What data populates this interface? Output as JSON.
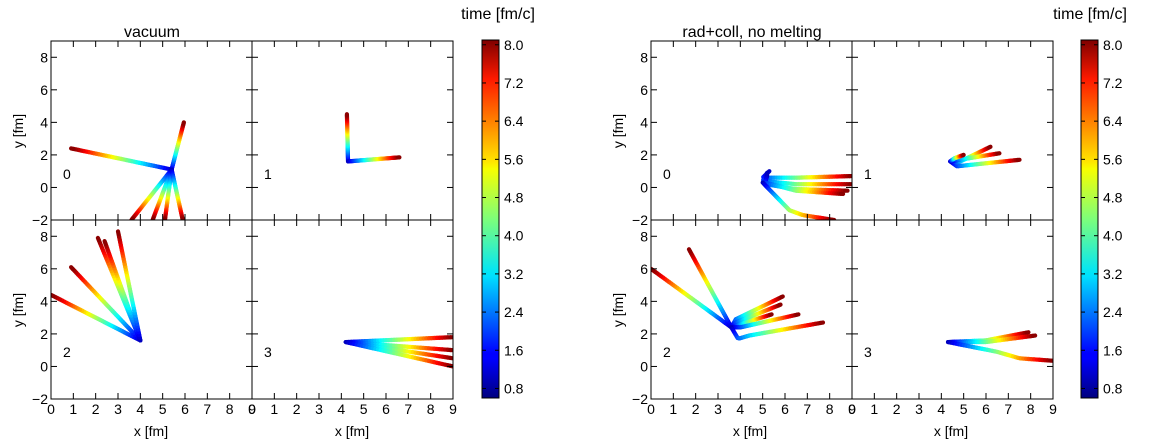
{
  "chart_data": [
    {
      "type": "line",
      "title": "vacuum",
      "xlabel": "x [fm]",
      "ylabel": "y [fm]",
      "xlim": [
        0,
        9
      ],
      "ylim": [
        -2,
        9
      ],
      "xticks": [
        "0",
        "1",
        "2",
        "3",
        "4",
        "5",
        "6",
        "7",
        "8",
        "9"
      ],
      "yticks": [
        "−2",
        "0",
        "2",
        "4",
        "6",
        "8"
      ],
      "colorbar": {
        "label": "time [fm/c]",
        "range": [
          0.6,
          8.1
        ],
        "ticks": [
          "0.8",
          "1.6",
          "2.4",
          "3.2",
          "4.0",
          "4.8",
          "5.6",
          "6.4",
          "7.2",
          "8.0"
        ]
      },
      "panels": [
        {
          "label": "0",
          "tracks": [
            {
              "x": [
                5.4,
                0.9
              ],
              "y": [
                1.1,
                2.4
              ]
            },
            {
              "x": [
                5.4,
                5.95
              ],
              "y": [
                1.1,
                4.0
              ]
            },
            {
              "x": [
                5.4,
                3.6
              ],
              "y": [
                1.1,
                -2.0
              ]
            },
            {
              "x": [
                5.4,
                4.55
              ],
              "y": [
                1.1,
                -2.0
              ]
            },
            {
              "x": [
                5.4,
                5.1
              ],
              "y": [
                1.1,
                -2.0
              ]
            },
            {
              "x": [
                5.4,
                5.9
              ],
              "y": [
                1.1,
                -2.0
              ]
            }
          ]
        },
        {
          "label": "1",
          "tracks": [
            {
              "x": [
                4.3,
                4.25
              ],
              "y": [
                1.6,
                4.5
              ]
            },
            {
              "x": [
                4.3,
                6.6
              ],
              "y": [
                1.6,
                1.85
              ]
            }
          ]
        },
        {
          "label": "2",
          "tracks": [
            {
              "x": [
                4.0,
                0.0
              ],
              "y": [
                1.6,
                4.4
              ]
            },
            {
              "x": [
                4.0,
                0.9
              ],
              "y": [
                1.6,
                6.1
              ]
            },
            {
              "x": [
                4.0,
                2.1
              ],
              "y": [
                1.6,
                7.9
              ]
            },
            {
              "x": [
                4.0,
                2.4
              ],
              "y": [
                1.6,
                7.7
              ]
            },
            {
              "x": [
                4.0,
                3.0
              ],
              "y": [
                1.6,
                8.3
              ]
            }
          ]
        },
        {
          "label": "3",
          "tracks": [
            {
              "x": [
                4.2,
                9.0
              ],
              "y": [
                1.5,
                1.8
              ]
            },
            {
              "x": [
                4.2,
                9.0
              ],
              "y": [
                1.5,
                1.0
              ]
            },
            {
              "x": [
                4.2,
                9.0
              ],
              "y": [
                1.5,
                0.5
              ]
            },
            {
              "x": [
                4.2,
                9.0
              ],
              "y": [
                1.5,
                0.0
              ]
            }
          ]
        }
      ]
    },
    {
      "type": "line",
      "title": "rad+coll, no melting",
      "xlabel": "x [fm]",
      "ylabel": "y [fm]",
      "xlim": [
        0,
        9
      ],
      "ylim": [
        -2,
        9
      ],
      "xticks": [
        "0",
        "1",
        "2",
        "3",
        "4",
        "5",
        "6",
        "7",
        "8",
        "9"
      ],
      "yticks": [
        "−2",
        "0",
        "2",
        "4",
        "6",
        "8"
      ],
      "colorbar": {
        "label": "time [fm/c]",
        "range": [
          0.6,
          8.1
        ],
        "ticks": [
          "0.8",
          "1.6",
          "2.4",
          "3.2",
          "4.0",
          "4.8",
          "5.6",
          "6.4",
          "7.2",
          "8.0"
        ]
      },
      "panels": [
        {
          "label": "0",
          "tracks": [
            {
              "x": [
                5.3,
                5.0,
                6.5,
                9.0
              ],
              "y": [
                1.0,
                0.6,
                0.6,
                0.7
              ]
            },
            {
              "x": [
                5.2,
                5.0,
                6.5,
                9.0
              ],
              "y": [
                0.9,
                0.4,
                0.2,
                0.2
              ]
            },
            {
              "x": [
                5.2,
                5.1,
                6.5,
                8.8
              ],
              "y": [
                0.8,
                0.2,
                -0.1,
                -0.2
              ]
            },
            {
              "x": [
                5.2,
                5.1,
                6.5,
                8.6
              ],
              "y": [
                0.7,
                0.3,
                -0.2,
                -0.4
              ]
            },
            {
              "x": [
                5.0,
                6.2,
                6.8,
                8.2
              ],
              "y": [
                0.3,
                -1.4,
                -1.7,
                -2.0
              ]
            }
          ]
        },
        {
          "label": "1",
          "tracks": [
            {
              "x": [
                4.4,
                4.7,
                7.5
              ],
              "y": [
                1.6,
                1.3,
                1.7
              ]
            },
            {
              "x": [
                4.4,
                4.7,
                6.2
              ],
              "y": [
                1.6,
                1.5,
                2.5
              ]
            },
            {
              "x": [
                4.4,
                4.8,
                6.6
              ],
              "y": [
                1.6,
                1.7,
                2.1
              ]
            },
            {
              "x": [
                4.4,
                4.6,
                5.0
              ],
              "y": [
                1.6,
                1.8,
                2.0
              ]
            }
          ]
        },
        {
          "label": "2",
          "tracks": [
            {
              "x": [
                3.6,
                0.0
              ],
              "y": [
                2.4,
                6.0
              ]
            },
            {
              "x": [
                3.6,
                1.7
              ],
              "y": [
                2.4,
                7.2
              ]
            },
            {
              "x": [
                3.6,
                3.8,
                5.9
              ],
              "y": [
                2.4,
                2.9,
                4.3
              ]
            },
            {
              "x": [
                3.6,
                3.8,
                5.8
              ],
              "y": [
                2.4,
                2.7,
                3.8
              ]
            },
            {
              "x": [
                3.6,
                4.0,
                5.4
              ],
              "y": [
                2.4,
                2.6,
                3.2
              ]
            },
            {
              "x": [
                3.6,
                4.0,
                6.6
              ],
              "y": [
                2.4,
                2.4,
                3.2
              ]
            },
            {
              "x": [
                3.6,
                3.9,
                4.4,
                7.7
              ],
              "y": [
                2.4,
                1.7,
                1.9,
                2.7
              ]
            }
          ]
        },
        {
          "label": "3",
          "tracks": [
            {
              "x": [
                4.3,
                6.0,
                7.9
              ],
              "y": [
                1.5,
                1.6,
                2.1
              ]
            },
            {
              "x": [
                4.3,
                6.0,
                8.2
              ],
              "y": [
                1.5,
                1.5,
                1.9
              ]
            },
            {
              "x": [
                4.3,
                6.5,
                7.5,
                9.0
              ],
              "y": [
                1.5,
                0.9,
                0.5,
                0.35
              ]
            }
          ]
        }
      ]
    }
  ]
}
